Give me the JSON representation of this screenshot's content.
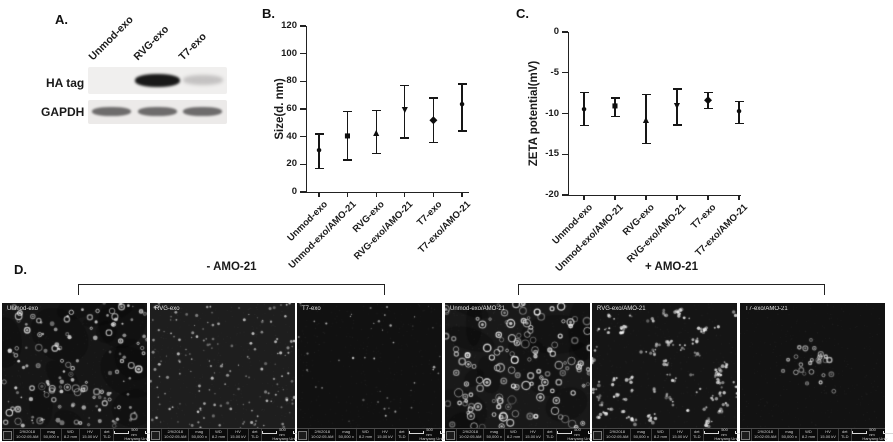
{
  "figure": {
    "background": "#ffffff",
    "ink": "#1a1a1a"
  },
  "panel_a": {
    "label": "A.",
    "lanes": [
      "Unmod-exo",
      "RVG-exo",
      "T7-exo"
    ],
    "rows": [
      {
        "label": "HA tag",
        "bands": [
          {
            "lane": "RVG-exo",
            "intensity": "strong"
          },
          {
            "lane": "T7-exo",
            "intensity": "faint"
          }
        ]
      },
      {
        "label": "GAPDH",
        "bands": [
          {
            "lane": "Unmod-exo",
            "intensity": "medium"
          },
          {
            "lane": "RVG-exo",
            "intensity": "medium"
          },
          {
            "lane": "T7-exo",
            "intensity": "medium"
          }
        ]
      }
    ]
  },
  "chart_data": [
    {
      "id": "size",
      "panel_label": "B.",
      "type": "scatter",
      "title": "",
      "xlabel": "",
      "ylabel": "Size(d. nm)",
      "ylim": [
        0,
        120
      ],
      "yticks": [
        0,
        20,
        40,
        60,
        80,
        100,
        120
      ],
      "grid": false,
      "legend_position": "none",
      "error_bars": "sd",
      "categories": [
        "Unmod-exo",
        "Unmod-exo/AMO-21",
        "RVG-exo",
        "RVG-exo/AMO-21",
        "T7-exo",
        "T7-exo/AMO-21"
      ],
      "series": [
        {
          "name": "Size (d. nm)",
          "values": [
            30,
            40,
            42.5,
            59,
            52,
            63
          ],
          "err_low": [
            17,
            23,
            28,
            39,
            36,
            44
          ],
          "err_high": [
            42,
            58,
            59,
            77,
            68,
            78
          ],
          "markers": [
            "circle",
            "square",
            "triangle-up",
            "triangle-down",
            "diamond",
            "circle"
          ]
        }
      ]
    },
    {
      "id": "zeta",
      "panel_label": "C.",
      "type": "scatter",
      "title": "",
      "xlabel": "",
      "ylabel": "ZETA potential(mV)",
      "ylim": [
        -20,
        0
      ],
      "yticks": [
        0,
        -5,
        -10,
        -15,
        -20
      ],
      "grid": false,
      "legend_position": "none",
      "error_bars": "sd",
      "categories": [
        "Unmod-exo",
        "Unmod-exo/AMO-21",
        "RVG-exo",
        "RVG-exo/AMO-21",
        "T7-exo",
        "T7-exo/AMO-21"
      ],
      "series": [
        {
          "name": "ZETA potential (mV)",
          "values": [
            -9.5,
            -9.2,
            -10.8,
            -9.1,
            -8.4,
            -9.7
          ],
          "err_low": [
            -11.5,
            -10.4,
            -13.7,
            -11.4,
            -9.4,
            -11.2
          ],
          "err_high": [
            -7.4,
            -8.1,
            -7.7,
            -7.0,
            -7.4,
            -8.5
          ],
          "markers": [
            "circle",
            "square",
            "triangle-up",
            "triangle-down",
            "diamond",
            "circle"
          ]
        }
      ]
    }
  ],
  "panel_d": {
    "label": "D.",
    "groups": [
      {
        "label": "- AMO-21",
        "members": [
          "Unmod-exo",
          "RVG-exo",
          "T7-exo"
        ]
      },
      {
        "label": "+ AMO-21",
        "members": [
          "Unmod-exo/AMO-21",
          "RVG-exo/AMO-21",
          "T7-exo/AMO-21"
        ]
      }
    ],
    "images": [
      {
        "title": "Unmod-exo",
        "texture": {
          "seed": 11,
          "count": 150,
          "rmin": 1.0,
          "rmax": 3.6,
          "style": "mixed",
          "bg": "#161616",
          "spread": "uniform",
          "bright": 0.9,
          "blotches": true
        }
      },
      {
        "title": "RVG-exo",
        "texture": {
          "seed": 22,
          "count": 165,
          "rmin": 0.7,
          "rmax": 2.3,
          "style": "dots",
          "bg": "#1e1e1e",
          "spread": "uniform",
          "bright": 0.8,
          "blotches": false
        }
      },
      {
        "title": "T7-exo",
        "texture": {
          "seed": 33,
          "count": 45,
          "rmin": 0.7,
          "rmax": 1.9,
          "style": "dots",
          "bg": "#111111",
          "spread": "uniform",
          "bright": 0.8,
          "blotches": false
        }
      },
      {
        "title": "Unmod-exo/AMO-21",
        "texture": {
          "seed": 44,
          "count": 135,
          "rmin": 1.3,
          "rmax": 4.2,
          "style": "rings",
          "bg": "#191919",
          "spread": "uniform",
          "bright": 1.0,
          "blotches": true
        }
      },
      {
        "title": "RVG-exo/AMO-21",
        "texture": {
          "seed": 55,
          "count": 70,
          "rmin": 0.8,
          "rmax": 2.2,
          "style": "clusters",
          "bg": "#151515",
          "spread": "uniform",
          "bright": 0.9,
          "blotches": false
        }
      },
      {
        "title": "T7-exo/AMO-21",
        "texture": {
          "seed": 66,
          "count": 26,
          "rmin": 1.3,
          "rmax": 2.6,
          "style": "rings",
          "bg": "#121212",
          "spread": "center",
          "bright": 0.85,
          "blotches": false
        }
      }
    ],
    "meta_bar": {
      "date": "2/9/2018",
      "time": "10:02:05 AM",
      "mag_label": "mag",
      "mag": "50,000 x",
      "wd_label": "WD",
      "wd": "8.2 mm",
      "hv_label": "HV",
      "hv": "15.00 kV",
      "det_label": "det",
      "det": "TLD",
      "scale": "500 nm",
      "credit": "Hanyang Univ"
    }
  }
}
